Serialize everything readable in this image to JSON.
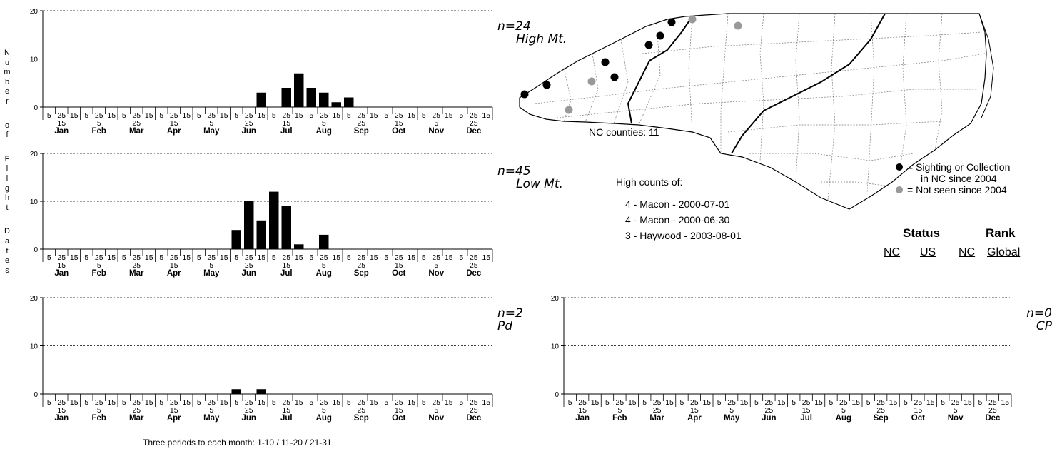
{
  "y_axis_label": "Number of Flight Dates",
  "footnote": "Three periods to each month: 1-10 / 11-20 / 21-31",
  "colors": {
    "sighting_recent": "#000000",
    "not_seen_recent": "#999999",
    "bar": "#000000"
  },
  "chart_data": [
    {
      "type": "bar",
      "panel": "High Mt.",
      "n_label": "n=24",
      "region": "High Mt.",
      "months": [
        "Jan",
        "Feb",
        "Mar",
        "Apr",
        "May",
        "Jun",
        "Jul",
        "Aug",
        "Sep",
        "Oct",
        "Nov",
        "Dec"
      ],
      "period_labels_top": [
        "5",
        "25",
        "15",
        "5",
        "25",
        "15",
        "5",
        "25",
        "15",
        "5",
        "25",
        "15",
        "5",
        "25",
        "15",
        "5",
        "25",
        "15",
        "5",
        "25",
        "15",
        "5",
        "25",
        "15",
        "5",
        "25",
        "15",
        "5",
        "25",
        "15",
        "5",
        "25",
        "15",
        "5",
        "25",
        "15"
      ],
      "period_labels_bottom": [
        "15",
        "5",
        "25",
        "15",
        "5",
        "25",
        "15",
        "5",
        "25",
        "15",
        "5",
        "25"
      ],
      "yticks": [
        0,
        10,
        20
      ],
      "ylim": [
        0,
        20
      ],
      "values": [
        0,
        0,
        0,
        0,
        0,
        0,
        0,
        0,
        0,
        0,
        0,
        0,
        0,
        0,
        0,
        0,
        0,
        3,
        0,
        4,
        7,
        4,
        3,
        1,
        2,
        0,
        0,
        0,
        0,
        0,
        0,
        0,
        0,
        0,
        0,
        0
      ]
    },
    {
      "type": "bar",
      "panel": "Low Mt.",
      "n_label": "n=45",
      "region": "Low Mt.",
      "months": [
        "Jan",
        "Feb",
        "Mar",
        "Apr",
        "May",
        "Jun",
        "Jul",
        "Aug",
        "Sep",
        "Oct",
        "Nov",
        "Dec"
      ],
      "period_labels_top": [
        "5",
        "25",
        "15",
        "5",
        "25",
        "15",
        "5",
        "25",
        "15",
        "5",
        "25",
        "15",
        "5",
        "25",
        "15",
        "5",
        "25",
        "15",
        "5",
        "25",
        "15",
        "5",
        "25",
        "15",
        "5",
        "25",
        "15",
        "5",
        "25",
        "15",
        "5",
        "25",
        "15",
        "5",
        "25",
        "15"
      ],
      "period_labels_bottom": [
        "15",
        "5",
        "25",
        "15",
        "5",
        "25",
        "15",
        "5",
        "25",
        "15",
        "5",
        "25"
      ],
      "yticks": [
        0,
        10,
        20
      ],
      "ylim": [
        0,
        20
      ],
      "values": [
        0,
        0,
        0,
        0,
        0,
        0,
        0,
        0,
        0,
        0,
        0,
        0,
        0,
        0,
        0,
        4,
        10,
        6,
        12,
        9,
        1,
        0,
        3,
        0,
        0,
        0,
        0,
        0,
        0,
        0,
        0,
        0,
        0,
        0,
        0,
        0
      ]
    },
    {
      "type": "bar",
      "panel": "Pd",
      "n_label": "n=2",
      "region": "Pd",
      "months": [
        "Jan",
        "Feb",
        "Mar",
        "Apr",
        "May",
        "Jun",
        "Jul",
        "Aug",
        "Sep",
        "Oct",
        "Nov",
        "Dec"
      ],
      "period_labels_top": [
        "5",
        "25",
        "15",
        "5",
        "25",
        "15",
        "5",
        "25",
        "15",
        "5",
        "25",
        "15",
        "5",
        "25",
        "15",
        "5",
        "25",
        "15",
        "5",
        "25",
        "15",
        "5",
        "25",
        "15",
        "5",
        "25",
        "15",
        "5",
        "25",
        "15",
        "5",
        "25",
        "15",
        "5",
        "25",
        "15"
      ],
      "period_labels_bottom": [
        "15",
        "5",
        "25",
        "15",
        "5",
        "25",
        "15",
        "5",
        "25",
        "15",
        "5",
        "25"
      ],
      "yticks": [
        0,
        10,
        20
      ],
      "ylim": [
        0,
        20
      ],
      "values": [
        0,
        0,
        0,
        0,
        0,
        0,
        0,
        0,
        0,
        0,
        0,
        0,
        0,
        0,
        0,
        1,
        0,
        1,
        0,
        0,
        0,
        0,
        0,
        0,
        0,
        0,
        0,
        0,
        0,
        0,
        0,
        0,
        0,
        0,
        0,
        0
      ]
    },
    {
      "type": "bar",
      "panel": "CP",
      "n_label": "n=0",
      "region": "CP",
      "months": [
        "Jan",
        "Feb",
        "Mar",
        "Apr",
        "May",
        "Jun",
        "Jul",
        "Aug",
        "Sep",
        "Oct",
        "Nov",
        "Dec"
      ],
      "period_labels_top": [
        "5",
        "25",
        "15",
        "5",
        "25",
        "15",
        "5",
        "25",
        "15",
        "5",
        "25",
        "15",
        "5",
        "25",
        "15",
        "5",
        "25",
        "15",
        "5",
        "25",
        "15",
        "5",
        "25",
        "15",
        "5",
        "25",
        "15",
        "5",
        "25",
        "15",
        "5",
        "25",
        "15",
        "5",
        "25",
        "15"
      ],
      "period_labels_bottom": [
        "15",
        "5",
        "25",
        "15",
        "5",
        "25",
        "15",
        "5",
        "25",
        "15",
        "5",
        "25"
      ],
      "yticks": [
        0,
        10,
        20
      ],
      "ylim": [
        0,
        20
      ],
      "values": [
        0,
        0,
        0,
        0,
        0,
        0,
        0,
        0,
        0,
        0,
        0,
        0,
        0,
        0,
        0,
        0,
        0,
        0,
        0,
        0,
        0,
        0,
        0,
        0,
        0,
        0,
        0,
        0,
        0,
        0,
        0,
        0,
        0,
        0,
        0,
        0
      ]
    }
  ],
  "map": {
    "counties_label": "NC counties: 11"
  },
  "high_counts": {
    "title": "High counts of:",
    "items": [
      "4 - Macon - 2000-07-01",
      "4 - Macon - 2000-06-30",
      "3 - Haywood - 2003-08-01"
    ]
  },
  "legend": {
    "recent": "= Sighting or Collection",
    "recent_line2": "in NC since 2004",
    "old": "= Not seen since 2004"
  },
  "status": {
    "status_title": "Status",
    "rank_title": "Rank",
    "nc": "NC",
    "us": "US",
    "rank_nc": "NC",
    "global": "Global"
  }
}
